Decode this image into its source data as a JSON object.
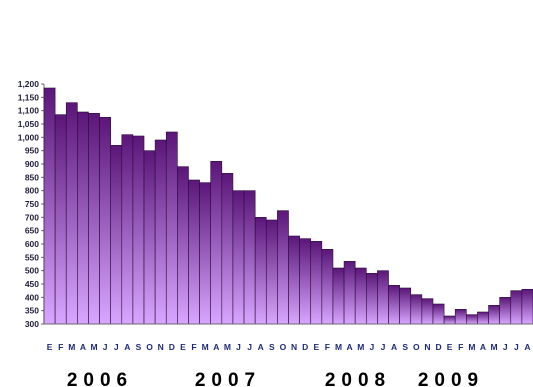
{
  "chart_data": {
    "type": "bar",
    "title": "",
    "xlabel": "",
    "ylabel": "",
    "ylim": [
      300,
      1200
    ],
    "yticks": [
      300,
      350,
      400,
      450,
      500,
      550,
      600,
      650,
      700,
      750,
      800,
      850,
      900,
      950,
      1000,
      1050,
      1100,
      1150,
      1200
    ],
    "ytick_labels": [
      "300",
      "350",
      "400",
      "450",
      "500",
      "550",
      "600",
      "650",
      "700",
      "750",
      "800",
      "850",
      "900",
      "950",
      "1,000",
      "1,050",
      "1,100",
      "1,150",
      "1,200"
    ],
    "categories": [
      "E",
      "F",
      "M",
      "A",
      "M",
      "J",
      "J",
      "A",
      "S",
      "O",
      "N",
      "D",
      "E",
      "F",
      "M",
      "A",
      "M",
      "J",
      "J",
      "A",
      "S",
      "O",
      "N",
      "D",
      "E",
      "F",
      "M",
      "A",
      "M",
      "J",
      "J",
      "A",
      "S",
      "O",
      "N",
      "D",
      "E",
      "F",
      "M",
      "A",
      "M",
      "J",
      "J",
      "A"
    ],
    "values": [
      1185,
      1085,
      1130,
      1095,
      1090,
      1075,
      970,
      1010,
      1005,
      950,
      990,
      1020,
      890,
      840,
      830,
      910,
      865,
      800,
      800,
      700,
      690,
      725,
      630,
      620,
      610,
      580,
      510,
      535,
      510,
      490,
      500,
      445,
      435,
      410,
      395,
      375,
      330,
      355,
      335,
      345,
      370,
      400,
      425,
      430
    ],
    "years": [
      "2006",
      "2007",
      "2008",
      "2009"
    ],
    "colors": {
      "bar_top": "#5a1678",
      "bar_bottom": "#d9a6ff",
      "bar_edge": "#2a0a3c",
      "axis": "#6a6a6a",
      "month_label": "#1e2a78"
    }
  }
}
